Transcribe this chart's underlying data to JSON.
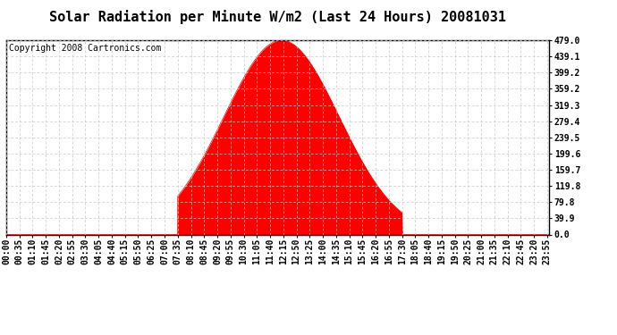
{
  "title": "Solar Radiation per Minute W/m2 (Last 24 Hours) 20081031",
  "copyright": "Copyright 2008 Cartronics.com",
  "fill_color": "#FF0000",
  "line_color": "#FF0000",
  "dashed_line_color": "#FF0000",
  "background_color": "#FFFFFF",
  "plot_bg_color": "#FFFFFF",
  "yticks": [
    0.0,
    39.9,
    79.8,
    119.8,
    159.7,
    199.6,
    239.5,
    279.4,
    319.3,
    359.2,
    399.2,
    439.1,
    479.0
  ],
  "ymax": 479.0,
  "ymin": 0.0,
  "peak_hour": 12.17,
  "peak_value": 479.0,
  "start_hour": 7.58,
  "end_hour": 17.5,
  "sigma": 2.55,
  "num_points": 1440,
  "xtick_step_minutes": 35,
  "grid_color": "#C8C8C8",
  "title_fontsize": 11,
  "copyright_fontsize": 7,
  "tick_label_fontsize": 7,
  "figwidth": 6.9,
  "figheight": 3.75,
  "dpi": 100
}
